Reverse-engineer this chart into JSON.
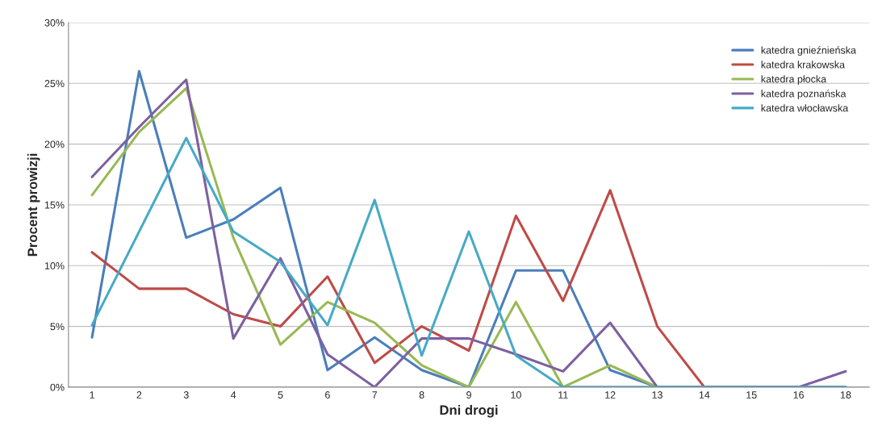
{
  "chart_data": {
    "type": "line",
    "xlabel": "Dni drogi",
    "ylabel": "Procent prowizji",
    "categories": [
      "1",
      "2",
      "3",
      "4",
      "5",
      "6",
      "7",
      "8",
      "9",
      "10",
      "11",
      "12",
      "13",
      "14",
      "15",
      "16",
      "18"
    ],
    "series": [
      {
        "name": "katedra gnieźnieńska",
        "color": "#4a7ebb",
        "values": [
          4.1,
          26.0,
          12.3,
          13.8,
          16.4,
          1.4,
          4.1,
          1.4,
          0,
          9.6,
          9.6,
          1.4,
          0,
          0,
          0,
          0,
          0
        ]
      },
      {
        "name": "katedra krakowska",
        "color": "#be4b48",
        "values": [
          11.1,
          8.1,
          8.1,
          6.0,
          5.0,
          9.1,
          2.0,
          5.0,
          3.0,
          14.1,
          7.1,
          16.2,
          5.0,
          0,
          0,
          null,
          null
        ]
      },
      {
        "name": "katedra płocka",
        "color": "#98b954",
        "values": [
          15.8,
          21.0,
          24.6,
          12.3,
          3.5,
          7.0,
          5.3,
          1.8,
          0,
          7.0,
          0,
          1.8,
          0,
          0,
          null,
          null,
          null
        ]
      },
      {
        "name": "katedra poznańska",
        "color": "#7d60a0",
        "values": [
          17.3,
          21.4,
          25.3,
          4.0,
          10.6,
          2.7,
          0,
          4.0,
          4.0,
          2.7,
          1.3,
          5.3,
          0,
          0,
          0,
          0,
          1.3
        ]
      },
      {
        "name": "katedra włocławska",
        "color": "#46aac5",
        "values": [
          5.1,
          12.8,
          20.5,
          12.8,
          10.3,
          5.1,
          15.4,
          2.6,
          12.8,
          2.6,
          0,
          0,
          0,
          0,
          0,
          0,
          0
        ]
      }
    ],
    "ylim": [
      0,
      30
    ],
    "yticks": [
      {
        "value": 0,
        "label": "0%"
      },
      {
        "value": 5,
        "label": "5%"
      },
      {
        "value": 10,
        "label": "10%"
      },
      {
        "value": 15,
        "label": "15%"
      },
      {
        "value": 20,
        "label": "20%"
      },
      {
        "value": 25,
        "label": "25%"
      },
      {
        "value": 30,
        "label": "30%"
      }
    ],
    "grid": "y",
    "legend": "top right",
    "marker": "none",
    "line_style": "solid"
  }
}
